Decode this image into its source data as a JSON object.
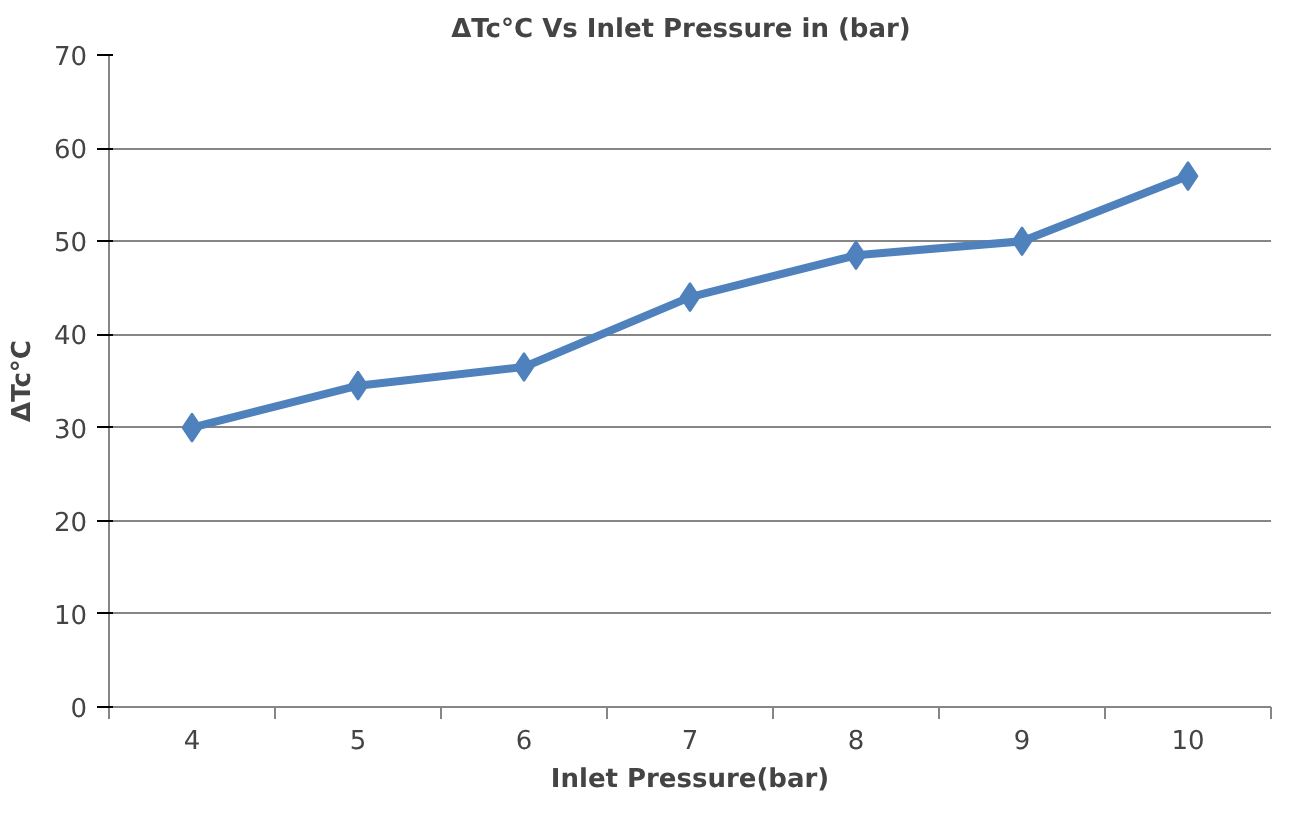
{
  "chart_data": {
    "type": "line",
    "title": "ΔTc°C   Vs Inlet Pressure in (bar)",
    "xlabel": "Inlet Pressure(bar)",
    "ylabel": "ΔTc°C",
    "categories": [
      "4",
      "5",
      "6",
      "7",
      "8",
      "9",
      "10"
    ],
    "series": [
      {
        "color": "#4f81bd",
        "values": [
          30,
          34.5,
          36.5,
          44,
          48.5,
          50,
          57
        ]
      }
    ],
    "ylim": [
      0,
      70
    ],
    "yticks": [
      0,
      10,
      20,
      30,
      40,
      50,
      60,
      70
    ],
    "grid": "y",
    "marker": "diamond",
    "line_style": "solid"
  }
}
